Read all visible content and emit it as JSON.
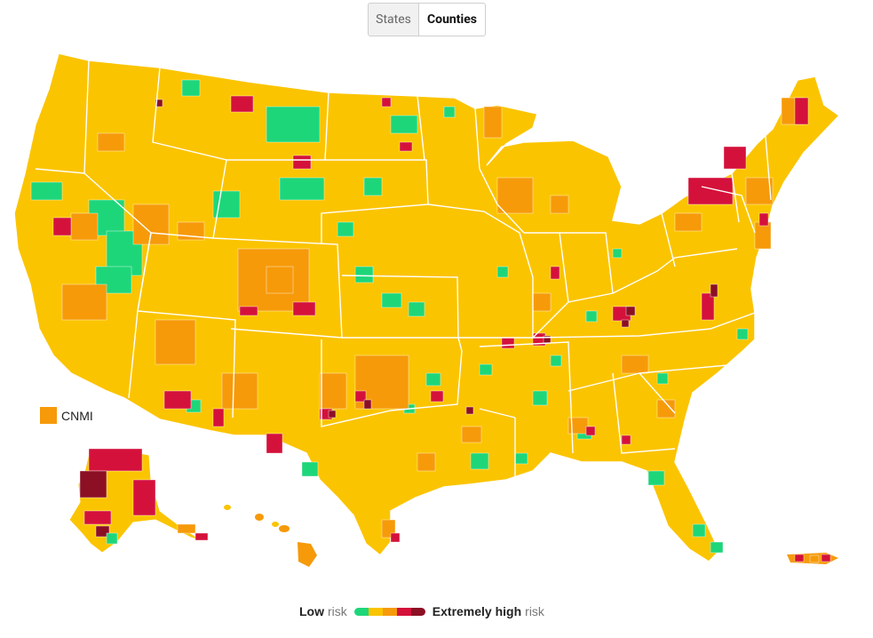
{
  "toggle": {
    "states_label": "States",
    "counties_label": "Counties",
    "active": "Counties"
  },
  "colors": {
    "green": "#1ed67a",
    "yellow": "#fbc400",
    "orange": "#f69a0a",
    "red": "#d4113b",
    "darkred": "#8c0f24",
    "border": "#ffffff"
  },
  "cnmi": {
    "label": "CNMI",
    "color": "#f69a0a"
  },
  "legend": {
    "low_bold": "Low",
    "low_rest": "risk",
    "high_bold": "Extremely high",
    "high_rest": "risk",
    "ramp": [
      "#1ed67a",
      "#fbc400",
      "#f69a0a",
      "#d4113b",
      "#8c0f24"
    ]
  }
}
